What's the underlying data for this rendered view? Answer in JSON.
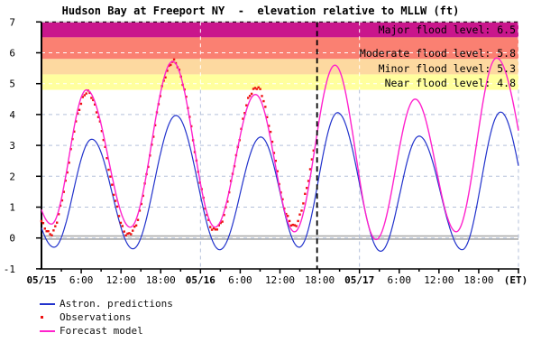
{
  "title": "Hudson Bay at Freeport NY  -  elevation relative to MLLW (ft)",
  "timezone_label": "(ET)",
  "colors": {
    "background": "#ffffff",
    "axis": "#000000",
    "grid_light": "#b4c0da",
    "grid_on_bands": "#ffffff",
    "zero_line": "#a8a8a8",
    "now_line": "#000000",
    "astron_predictions": "#2233cc",
    "observations": "#ee1111",
    "forecast_model": "#ff22cc",
    "band_major": "#c9168c",
    "band_moderate": "#fa8072",
    "band_minor": "#fdd9a0",
    "band_near": "#ffff9e"
  },
  "flood_levels": [
    {
      "name": "major",
      "label": "Major flood level: 6.5",
      "value": 6.5,
      "band_top": 7.0,
      "color": "#c9168c"
    },
    {
      "name": "moderate",
      "label": "Moderate flood level: 5.8",
      "value": 5.8,
      "band_top": 6.5,
      "color": "#fa8072"
    },
    {
      "name": "minor",
      "label": "Minor flood level: 5.3",
      "value": 5.3,
      "band_top": 5.8,
      "color": "#fdd9a0"
    },
    {
      "name": "near",
      "label": "Near flood level: 4.8",
      "value": 4.8,
      "band_top": 5.3,
      "color": "#ffff9e"
    }
  ],
  "legend": [
    {
      "label": "Astron. predictions",
      "marker": "line",
      "color": "#2233cc"
    },
    {
      "label": "Observations",
      "marker": "dot",
      "color": "#ee1111"
    },
    {
      "label": "Forecast model",
      "marker": "line",
      "color": "#ff22cc"
    }
  ],
  "chart_data": {
    "type": "line",
    "title": "Hudson Bay at Freeport NY - elevation relative to MLLW (ft)",
    "ylabel": "elevation relative to MLLW (ft)",
    "ylim": [
      -1,
      7
    ],
    "y_ticks": [
      -1,
      0,
      1,
      2,
      3,
      4,
      5,
      6,
      7
    ],
    "x_range_hours": [
      0,
      72
    ],
    "x_minor_tick_hours": 3,
    "x_tick_labels": [
      {
        "text": "05/15",
        "hour": 0,
        "bold": true
      },
      {
        "text": "6:00",
        "hour": 6,
        "bold": false
      },
      {
        "text": "12:00",
        "hour": 12,
        "bold": false
      },
      {
        "text": "18:00",
        "hour": 18,
        "bold": false
      },
      {
        "text": "05/16",
        "hour": 24,
        "bold": true
      },
      {
        "text": "6:00",
        "hour": 30,
        "bold": false
      },
      {
        "text": "12:00",
        "hour": 36,
        "bold": false
      },
      {
        "text": "18:00",
        "hour": 42,
        "bold": false
      },
      {
        "text": "05/17",
        "hour": 48,
        "bold": true
      },
      {
        "text": "6:00",
        "hour": 54,
        "bold": false
      },
      {
        "text": "12:00",
        "hour": 60,
        "bold": false
      },
      {
        "text": "18:00",
        "hour": 66,
        "bold": false
      },
      {
        "text": "(ET)",
        "hour": 72,
        "bold": true
      }
    ],
    "day_gridline_hours": [
      24,
      48,
      72
    ],
    "now_line_hour": 41.6,
    "grid": true,
    "legend_position": "below",
    "series": [
      {
        "name": "Astron. predictions",
        "style": "line",
        "color": "#2233cc",
        "hour_range": [
          0,
          72
        ],
        "extremes_h_ft": [
          [
            -4.8,
            3.1
          ],
          [
            1.9,
            -0.3
          ],
          [
            7.6,
            3.2
          ],
          [
            13.8,
            -0.35
          ],
          [
            20.3,
            3.97
          ],
          [
            26.9,
            -0.38
          ],
          [
            33.1,
            3.27
          ],
          [
            38.9,
            -0.3
          ],
          [
            44.7,
            4.06
          ],
          [
            51.2,
            -0.43
          ],
          [
            57.0,
            3.3
          ],
          [
            63.5,
            -0.38
          ],
          [
            69.3,
            4.08
          ],
          [
            75.6,
            -0.4
          ]
        ]
      },
      {
        "name": "Observations",
        "style": "dots",
        "color": "#ee1111",
        "hour_range": [
          0,
          41.2
        ],
        "extremes_h_ft": [
          [
            -5.2,
            4.3
          ],
          [
            1.3,
            0.15
          ],
          [
            6.9,
            4.7
          ],
          [
            13.2,
            0.1
          ],
          [
            19.9,
            5.7
          ],
          [
            26.2,
            0.25
          ],
          [
            32.4,
            4.88
          ],
          [
            38.0,
            0.4
          ],
          [
            44.4,
            5.7
          ]
        ]
      },
      {
        "name": "Forecast model",
        "style": "line",
        "color": "#ff22cc",
        "hour_range": [
          0,
          72
        ],
        "extremes_h_ft": [
          [
            -5.3,
            4.5
          ],
          [
            1.5,
            0.45
          ],
          [
            6.8,
            4.8
          ],
          [
            13.4,
            0.35
          ],
          [
            19.8,
            5.72
          ],
          [
            26.2,
            0.35
          ],
          [
            32.3,
            4.65
          ],
          [
            38.2,
            0.2
          ],
          [
            44.3,
            5.6
          ],
          [
            50.5,
            -0.05
          ],
          [
            56.4,
            4.5
          ],
          [
            62.6,
            0.2
          ],
          [
            68.7,
            5.83
          ],
          [
            76.0,
            0.3
          ]
        ]
      }
    ]
  }
}
